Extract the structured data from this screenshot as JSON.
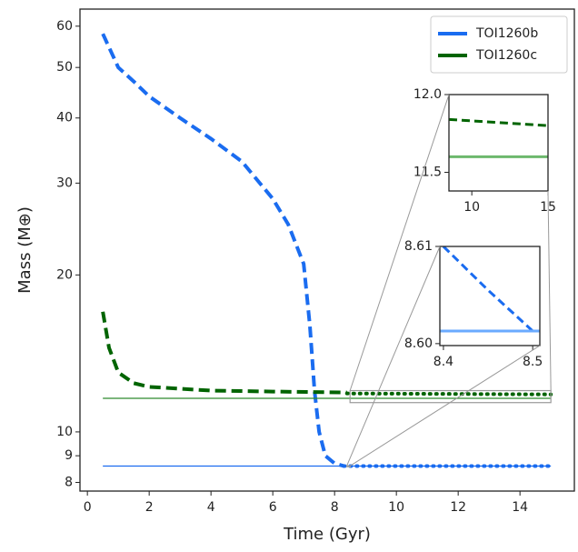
{
  "chart_data": [
    {
      "type": "line",
      "xlabel": "Time (Gyr)",
      "ylabel": "Mass (M⊕)",
      "yscale": "log",
      "xlim": [
        -0.24,
        15.76
      ],
      "ylim": [
        7.7,
        64.7
      ],
      "xticks": [
        0,
        2,
        4,
        6,
        8,
        10,
        12,
        14
      ],
      "yticks": [
        8,
        9,
        10,
        20,
        30,
        40,
        50,
        60
      ],
      "legend": "upper right",
      "series": [
        {
          "name": "TOI1260b",
          "color": "#1a6cf0",
          "style": "dashed",
          "x": [
            0.5,
            1,
            1.5,
            2,
            3,
            4,
            5,
            6,
            6.5,
            7,
            7.2,
            7.35,
            7.5,
            7.7,
            8,
            8.3
          ],
          "values": [
            58,
            50,
            47,
            44,
            40,
            36.5,
            33,
            28,
            25,
            21,
            16,
            12,
            10,
            9,
            8.7,
            8.6
          ]
        },
        {
          "name": "TOI1260c",
          "color": "#006400",
          "style": "dashed",
          "x": [
            0.5,
            0.7,
            1,
            1.5,
            2,
            4,
            6,
            8.4
          ],
          "values": [
            17,
            14.5,
            13,
            12.4,
            12.2,
            12.0,
            11.95,
            11.9
          ]
        },
        {
          "color": "#1a6cf0",
          "style": "dotted",
          "x": [
            8.3,
            15
          ],
          "values": [
            8.6,
            8.6
          ]
        },
        {
          "color": "#006400",
          "style": "dotted",
          "x": [
            8.4,
            15
          ],
          "values": [
            11.85,
            11.8
          ]
        },
        {
          "color": "#1a6cf0",
          "style": "solid",
          "x": [
            0.5,
            15
          ],
          "values": [
            8.6,
            8.6
          ]
        },
        {
          "color": "#2e8b2e",
          "style": "solid",
          "x": [
            0.5,
            15
          ],
          "values": [
            11.6,
            11.6
          ]
        }
      ]
    },
    {
      "type": "line",
      "xlim": [
        8.5,
        15
      ],
      "ylim": [
        11.38,
        12.0
      ],
      "xticks": [
        10,
        15
      ],
      "yticks": [
        11.5,
        {
          "value": 12,
          "label": "12.0"
        }
      ],
      "series": [
        {
          "color": "#006400",
          "style": "dashed",
          "x": [
            8.5,
            15
          ],
          "values": [
            11.84,
            11.8
          ]
        },
        {
          "color": "#6db86d",
          "style": "solid",
          "x": [
            8.5,
            15
          ],
          "values": [
            11.6,
            11.6
          ]
        }
      ]
    },
    {
      "type": "line",
      "xlim": [
        8.396,
        8.508
      ],
      "ylim": [
        8.5998,
        8.61
      ],
      "xticks": [
        8.4,
        8.5
      ],
      "yticks": [
        {
          "value": 8.6,
          "label": "8.60"
        },
        8.61
      ],
      "series": [
        {
          "color": "#1a6cf0",
          "style": "dashed",
          "x": [
            8.4,
            8.45,
            8.5
          ],
          "values": [
            8.61,
            8.6055,
            8.6013
          ]
        },
        {
          "color": "#6aaaff",
          "style": "solid",
          "x": [
            8.396,
            8.508
          ],
          "values": [
            8.6013,
            8.6013
          ]
        }
      ]
    }
  ]
}
